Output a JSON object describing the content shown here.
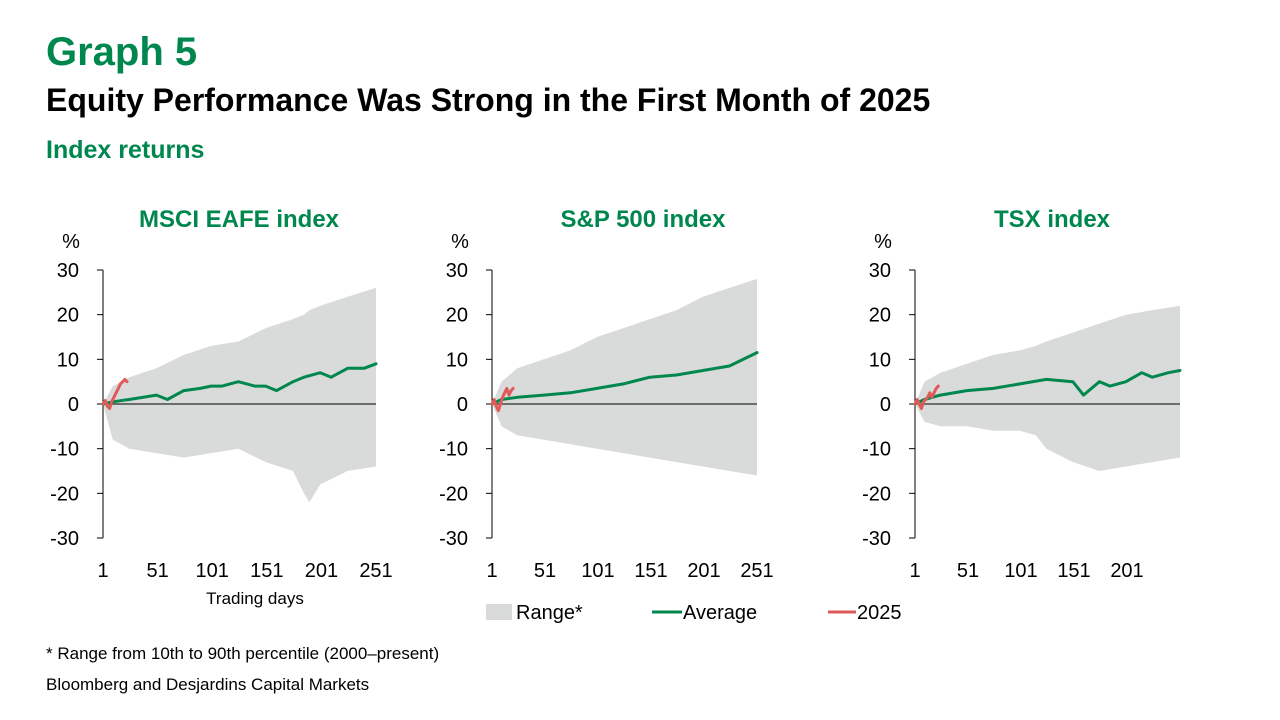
{
  "header": {
    "graph_label": "Graph 5",
    "title": "Equity Performance Was Strong in the First Month of 2025",
    "subtitle": "Index returns"
  },
  "colors": {
    "accent": "#00874e",
    "range_fill": "#d8dbd9",
    "average_line": "#00874e",
    "current_line": "#e05a5a"
  },
  "legend": {
    "range_label": "Range*",
    "average_label": "Average",
    "current_label": "2025"
  },
  "footnotes": {
    "note": "* Range from 10th to 90th percentile (2000–present)",
    "source": "Bloomberg and Desjardins Capital Markets"
  },
  "chart_data": [
    {
      "type": "area",
      "title": "MSCI EAFE index",
      "ylabel": "%",
      "xlabel": "Trading days",
      "ylim": [
        -30,
        30
      ],
      "yticks": [
        30,
        20,
        10,
        0,
        -10,
        -20,
        -30
      ],
      "xlim": [
        1,
        251
      ],
      "xticks": [
        1,
        51,
        101,
        151,
        201,
        251
      ],
      "series": [
        {
          "name": "Range*",
          "kind": "band",
          "x": [
            1,
            10,
            25,
            50,
            75,
            100,
            125,
            150,
            175,
            185,
            190,
            200,
            225,
            251
          ],
          "upper": [
            0,
            4,
            6,
            8,
            11,
            13,
            14,
            17,
            19,
            20,
            21,
            22,
            24,
            26
          ],
          "lower": [
            0,
            -8,
            -10,
            -11,
            -12,
            -11,
            -10,
            -13,
            -15,
            -20,
            -22,
            -18,
            -15,
            -14
          ]
        },
        {
          "name": "Average",
          "kind": "line",
          "x": [
            1,
            10,
            25,
            50,
            60,
            75,
            90,
            100,
            110,
            125,
            140,
            150,
            160,
            175,
            185,
            200,
            210,
            225,
            240,
            251
          ],
          "y": [
            0,
            0.5,
            1,
            2,
            1,
            3,
            3.5,
            4,
            4,
            5,
            4,
            4,
            3,
            5,
            6,
            7,
            6,
            8,
            8,
            9
          ]
        },
        {
          "name": "2025",
          "kind": "line",
          "x": [
            1,
            3,
            5,
            7,
            9,
            11,
            13,
            15,
            17,
            19,
            21,
            23
          ],
          "y": [
            0,
            0.8,
            -0.5,
            -1,
            0.5,
            1.5,
            2.5,
            3.5,
            4.5,
            5,
            5.5,
            5
          ]
        }
      ]
    },
    {
      "type": "area",
      "title": "S&P 500 index",
      "ylabel": "%",
      "xlabel": "",
      "ylim": [
        -30,
        30
      ],
      "yticks": [
        30,
        20,
        10,
        0,
        -10,
        -20,
        -30
      ],
      "xlim": [
        1,
        251
      ],
      "xticks": [
        1,
        51,
        101,
        151,
        201,
        251
      ],
      "series": [
        {
          "name": "Range*",
          "kind": "band",
          "x": [
            1,
            10,
            25,
            50,
            75,
            100,
            125,
            150,
            175,
            200,
            225,
            251
          ],
          "upper": [
            0,
            5,
            8,
            10,
            12,
            15,
            17,
            19,
            21,
            24,
            26,
            28
          ],
          "lower": [
            0,
            -5,
            -7,
            -8,
            -9,
            -10,
            -11,
            -12,
            -13,
            -14,
            -15,
            -16
          ]
        },
        {
          "name": "Average",
          "kind": "line",
          "x": [
            1,
            10,
            25,
            50,
            75,
            100,
            125,
            150,
            175,
            200,
            225,
            251
          ],
          "y": [
            0,
            1,
            1.5,
            2,
            2.5,
            3.5,
            4.5,
            6,
            6.5,
            7.5,
            8.5,
            11.5
          ]
        },
        {
          "name": "2025",
          "kind": "line",
          "x": [
            1,
            3,
            5,
            7,
            9,
            11,
            13,
            15,
            17,
            19,
            21
          ],
          "y": [
            0,
            1,
            -0.5,
            -1.5,
            0,
            1.5,
            2.5,
            3.5,
            2,
            3,
            3.5
          ]
        }
      ]
    },
    {
      "type": "area",
      "title": "TSX index",
      "ylabel": "%",
      "xlabel": "",
      "ylim": [
        -30,
        30
      ],
      "yticks": [
        30,
        20,
        10,
        0,
        -10,
        -20,
        -30
      ],
      "xlim": [
        1,
        251
      ],
      "xticks": [
        1,
        51,
        101,
        151,
        201
      ],
      "series": [
        {
          "name": "Range*",
          "kind": "band",
          "x": [
            1,
            10,
            25,
            50,
            75,
            100,
            115,
            125,
            150,
            175,
            200,
            225,
            251
          ],
          "upper": [
            0,
            5,
            7,
            9,
            11,
            12,
            13,
            14,
            16,
            18,
            20,
            21,
            22
          ],
          "lower": [
            0,
            -4,
            -5,
            -5,
            -6,
            -6,
            -7,
            -10,
            -13,
            -15,
            -14,
            -13,
            -12
          ]
        },
        {
          "name": "Average",
          "kind": "line",
          "x": [
            1,
            10,
            25,
            50,
            75,
            100,
            125,
            150,
            160,
            175,
            185,
            200,
            215,
            225,
            240,
            251
          ],
          "y": [
            0,
            1,
            2,
            3,
            3.5,
            4.5,
            5.5,
            5,
            2,
            5,
            4,
            5,
            7,
            6,
            7,
            7.5
          ]
        },
        {
          "name": "2025",
          "kind": "line",
          "x": [
            1,
            3,
            5,
            7,
            9,
            11,
            13,
            15,
            17,
            19,
            21,
            23
          ],
          "y": [
            0,
            1,
            0,
            -1,
            0.5,
            1,
            1.5,
            2.5,
            1.5,
            2.5,
            3.5,
            4
          ]
        }
      ]
    }
  ]
}
